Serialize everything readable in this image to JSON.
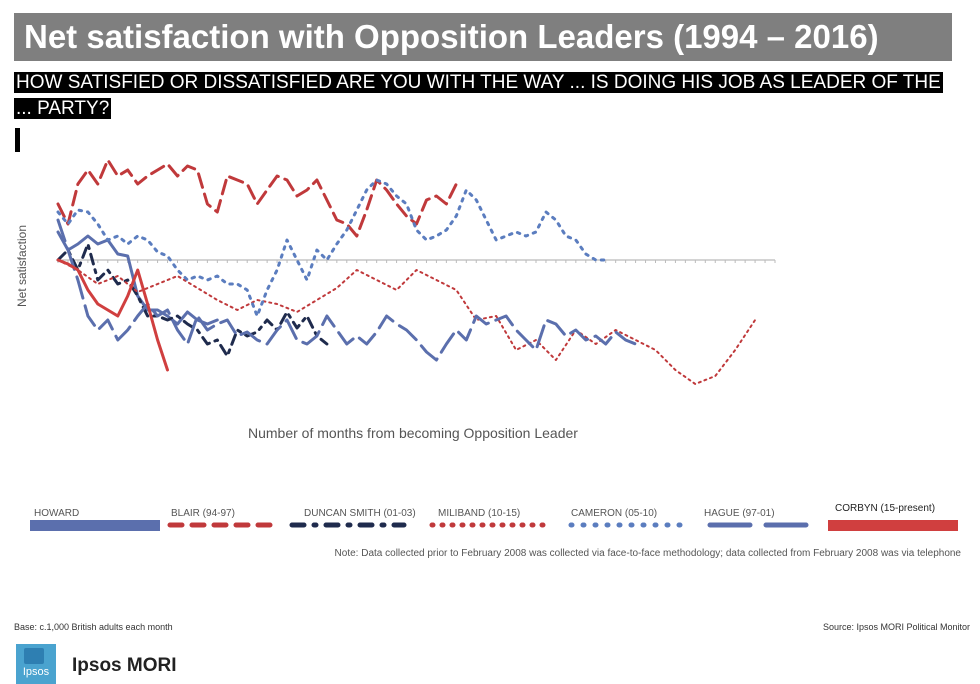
{
  "title": "Net satisfaction with Opposition Leaders (1994 – 2016)",
  "subtitle": "HOW SATISFIED OR DISSATISFIED ARE YOU WITH THE WAY ... IS DOING HIS JOB AS LEADER OF THE ... PARTY?",
  "note": "Note: Data collected prior to February 2008 was collected via face-to-face methodology; data collected from February 2008 was via telephone",
  "base": "Base: c.1,000 British adults each month",
  "source": "Source: Ipsos MORI Political Monitor",
  "brand": "Ipsos MORI",
  "logo_text": "Ipsos",
  "chart_data": {
    "type": "line",
    "xlabel": "Number of months from becoming Opposition Leader",
    "ylabel": "Net satisfaction",
    "xlim": [
      0,
      72
    ],
    "ylim": [
      -65,
      50
    ],
    "grid": false,
    "legend_position": "bottom",
    "series": [
      {
        "name": "HOWARD",
        "color": "#5b6fad",
        "style": "solid",
        "x": [
          0,
          1,
          2,
          3,
          4,
          5,
          6,
          7,
          8,
          9,
          10,
          11,
          12,
          13,
          14,
          15,
          16
        ],
        "y": [
          14,
          5,
          8,
          12,
          8,
          10,
          3,
          2,
          -18,
          -25,
          -25,
          -28,
          -32,
          -26,
          -30,
          -32,
          -30
        ]
      },
      {
        "name": "BLAIR (94-97)",
        "color": "#c0393b",
        "style": "dash",
        "x": [
          0,
          1,
          2,
          3,
          4,
          5,
          6,
          7,
          8,
          9,
          10,
          11,
          12,
          13,
          14,
          15,
          16,
          17,
          18,
          19,
          20,
          21,
          22,
          23,
          24,
          25,
          26,
          27,
          28,
          29,
          30,
          31,
          32,
          33,
          34,
          35,
          36,
          37,
          38,
          39,
          40
        ],
        "y": [
          28,
          18,
          38,
          45,
          38,
          50,
          42,
          45,
          38,
          42,
          45,
          48,
          42,
          47,
          45,
          28,
          24,
          42,
          40,
          38,
          28,
          35,
          42,
          40,
          32,
          35,
          40,
          30,
          20,
          18,
          12,
          25,
          40,
          35,
          28,
          22,
          18,
          30,
          32,
          28,
          38
        ]
      },
      {
        "name": "DUNCAN SMITH (01-03)",
        "color": "#1f2b4d",
        "style": "dashdot",
        "x": [
          0,
          1,
          2,
          3,
          4,
          5,
          6,
          7,
          8,
          9,
          10,
          11,
          12,
          13,
          14,
          15,
          16,
          17,
          18,
          19,
          20,
          21,
          22,
          23,
          24,
          25,
          26,
          27
        ],
        "y": [
          0,
          5,
          -5,
          8,
          -10,
          -5,
          -12,
          -10,
          -18,
          -28,
          -28,
          -30,
          -28,
          -32,
          -35,
          -42,
          -40,
          -48,
          -35,
          -38,
          -36,
          -30,
          -35,
          -26,
          -34,
          -28,
          -38,
          -42
        ]
      },
      {
        "name": "MILIBAND (10-15)",
        "color": "#c0393b",
        "style": "dot",
        "x": [
          0,
          2,
          4,
          6,
          8,
          10,
          12,
          14,
          16,
          18,
          20,
          22,
          24,
          26,
          28,
          30,
          32,
          34,
          36,
          38,
          40,
          42,
          44,
          46,
          48,
          50,
          52,
          54,
          56,
          58,
          60,
          62,
          64,
          66,
          68,
          70
        ],
        "y": [
          0,
          -5,
          -12,
          -8,
          -16,
          -12,
          -8,
          -14,
          -20,
          -25,
          -20,
          -22,
          -26,
          -20,
          -14,
          -5,
          -10,
          -15,
          -5,
          -10,
          -15,
          -30,
          -28,
          -45,
          -40,
          -50,
          -35,
          -42,
          -35,
          -40,
          -45,
          -55,
          -62,
          -58,
          -45,
          -30
        ]
      },
      {
        "name": "CAMERON (05-10)",
        "color": "#5b7dbf",
        "style": "dotbig",
        "x": [
          0,
          1,
          2,
          3,
          4,
          5,
          6,
          7,
          8,
          9,
          10,
          11,
          12,
          13,
          14,
          15,
          16,
          17,
          18,
          19,
          20,
          21,
          22,
          23,
          24,
          25,
          26,
          27,
          28,
          29,
          30,
          31,
          32,
          33,
          34,
          35,
          36,
          37,
          38,
          39,
          40,
          41,
          42,
          43,
          44,
          45,
          46,
          47,
          48,
          49,
          50,
          51,
          52,
          53,
          54,
          55
        ],
        "y": [
          24,
          18,
          25,
          24,
          18,
          10,
          12,
          8,
          12,
          10,
          4,
          2,
          -5,
          -10,
          -8,
          -10,
          -8,
          -12,
          -12,
          -15,
          -28,
          -15,
          -5,
          10,
          0,
          -10,
          5,
          0,
          8,
          15,
          25,
          35,
          40,
          38,
          32,
          28,
          15,
          10,
          12,
          15,
          22,
          35,
          30,
          20,
          10,
          12,
          14,
          12,
          14,
          24,
          20,
          12,
          10,
          3,
          0,
          0
        ]
      },
      {
        "name": "HAGUE (97-01)",
        "color": "#5b6fad",
        "style": "longdash",
        "x": [
          0,
          1,
          2,
          3,
          4,
          5,
          6,
          7,
          8,
          9,
          10,
          11,
          12,
          13,
          14,
          15,
          16,
          17,
          18,
          19,
          20,
          21,
          22,
          23,
          24,
          25,
          26,
          27,
          28,
          29,
          30,
          31,
          32,
          33,
          34,
          35,
          36,
          37,
          38,
          39,
          40,
          41,
          42,
          43,
          44,
          45,
          46,
          47,
          48,
          49,
          50,
          51,
          52,
          53,
          54,
          55,
          56,
          57,
          58
        ],
        "y": [
          20,
          5,
          -10,
          -28,
          -35,
          -30,
          -40,
          -35,
          -28,
          -22,
          -28,
          -25,
          -35,
          -42,
          -28,
          -35,
          -32,
          -30,
          -38,
          -36,
          -40,
          -42,
          -35,
          -30,
          -40,
          -42,
          -38,
          -28,
          -35,
          -42,
          -38,
          -42,
          -36,
          -28,
          -32,
          -35,
          -40,
          -46,
          -50,
          -42,
          -35,
          -40,
          -28,
          -32,
          -30,
          -28,
          -35,
          -40,
          -45,
          -30,
          -32,
          -38,
          -35,
          -40,
          -38,
          -42,
          -36,
          -40,
          -42
        ]
      },
      {
        "name": "CORBYN (15-present)",
        "color": "#d03f3f",
        "style": "solid",
        "x": [
          0,
          1,
          2,
          3,
          4,
          5,
          6,
          7,
          8,
          9,
          10,
          11
        ],
        "y": [
          0,
          -2,
          -5,
          -15,
          -22,
          -25,
          -28,
          -18,
          -5,
          -22,
          -40,
          -55
        ]
      }
    ],
    "legend": [
      {
        "label": "HOWARD"
      },
      {
        "label": "BLAIR (94-97)"
      },
      {
        "label": "DUNCAN SMITH (01-03)"
      },
      {
        "label": "MILIBAND (10-15)"
      },
      {
        "label": "CAMERON (05-10)"
      },
      {
        "label": "HAGUE (97-01)"
      },
      {
        "label": "CORBYN (15-present)"
      }
    ]
  }
}
